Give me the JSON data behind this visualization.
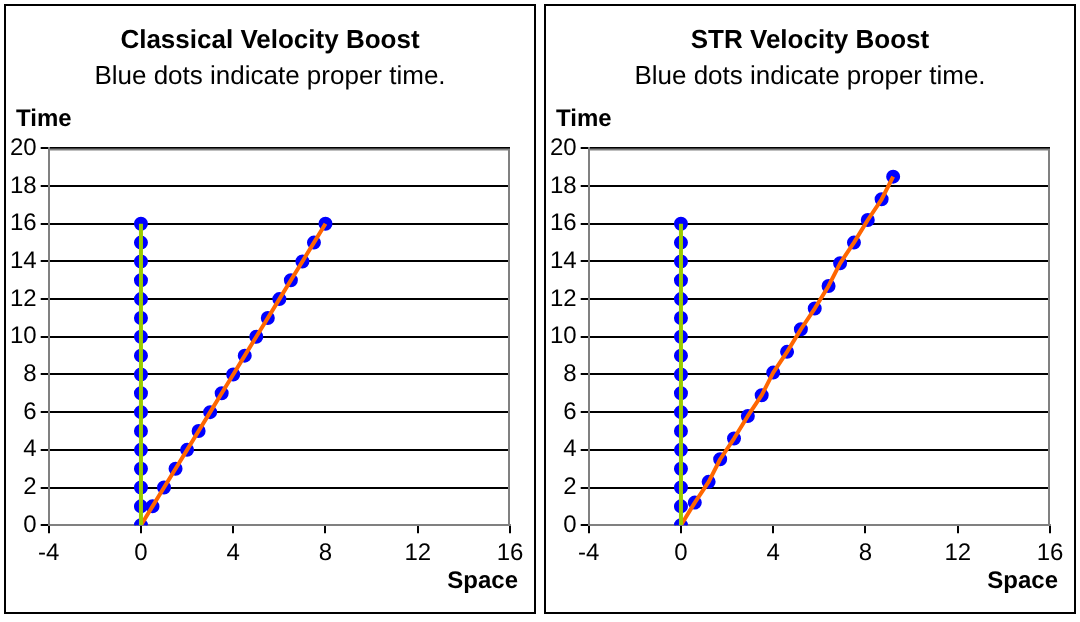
{
  "chart_data": [
    {
      "type": "scatter",
      "title": "Classical Velocity Boost",
      "subtitle": "Blue dots indicate proper time.",
      "xlabel": "Space",
      "ylabel": "Time",
      "xlim": [
        -4,
        16
      ],
      "xticks": [
        -4,
        0,
        4,
        8,
        12,
        16
      ],
      "ylim": [
        0,
        20
      ],
      "yticks": [
        0,
        2,
        4,
        6,
        8,
        10,
        12,
        14,
        16,
        18,
        20
      ],
      "grid": "y",
      "legend": false,
      "series": [
        {
          "type": "line",
          "marker": "none",
          "color": "#99cc00",
          "x": [
            0,
            0,
            0,
            0,
            0,
            0,
            0,
            0,
            0,
            0,
            0,
            0,
            0,
            0,
            0,
            0,
            0
          ],
          "values": [
            0,
            1,
            2,
            3,
            4,
            5,
            6,
            7,
            8,
            9,
            10,
            11,
            12,
            13,
            14,
            15,
            16
          ]
        },
        {
          "type": "line",
          "marker": "none",
          "color": "#ff6600",
          "x": [
            0,
            0.5,
            1,
            1.5,
            2,
            2.5,
            3,
            3.5,
            4,
            4.5,
            5,
            5.5,
            6,
            6.5,
            7,
            7.5,
            8
          ],
          "values": [
            0,
            1,
            2,
            3,
            4,
            5,
            6,
            7,
            8,
            9,
            10,
            11,
            12,
            13,
            14,
            15,
            16
          ]
        },
        {
          "marker": "circle",
          "color": "#0000ff",
          "x": [
            0,
            0,
            0,
            0,
            0,
            0,
            0,
            0,
            0,
            0,
            0,
            0,
            0,
            0,
            0,
            0,
            0
          ],
          "values": [
            0,
            1,
            2,
            3,
            4,
            5,
            6,
            7,
            8,
            9,
            10,
            11,
            12,
            13,
            14,
            15,
            16
          ]
        },
        {
          "marker": "circle",
          "color": "#0000ff",
          "x": [
            0.5,
            1,
            1.5,
            2,
            2.5,
            3,
            3.5,
            4,
            4.5,
            5,
            5.5,
            6,
            6.5,
            7,
            7.5,
            8
          ],
          "values": [
            1,
            2,
            3,
            4,
            5,
            6,
            7,
            8,
            9,
            10,
            11,
            12,
            13,
            14,
            15,
            16
          ]
        }
      ]
    },
    {
      "type": "scatter",
      "title": "STR Velocity Boost",
      "subtitle": "Blue dots indicate proper time.",
      "xlabel": "Space",
      "ylabel": "Time",
      "xlim": [
        -4,
        16
      ],
      "xticks": [
        -4,
        0,
        4,
        8,
        12,
        16
      ],
      "ylim": [
        0,
        20
      ],
      "yticks": [
        0,
        2,
        4,
        6,
        8,
        10,
        12,
        14,
        16,
        18,
        20
      ],
      "grid": "y",
      "legend": false,
      "series": [
        {
          "type": "line",
          "marker": "none",
          "color": "#99cc00",
          "x": [
            0,
            0,
            0,
            0,
            0,
            0,
            0,
            0,
            0,
            0,
            0,
            0,
            0,
            0,
            0,
            0,
            0
          ],
          "values": [
            0,
            1,
            2,
            3,
            4,
            5,
            6,
            7,
            8,
            9,
            10,
            11,
            12,
            13,
            14,
            15,
            16
          ]
        },
        {
          "type": "line",
          "marker": "none",
          "color": "#ff6600",
          "x": [
            0,
            0.6,
            1.2,
            1.7,
            2.3,
            2.9,
            3.5,
            4.0,
            4.6,
            5.2,
            5.8,
            6.4,
            6.9,
            7.5,
            8.1,
            8.7,
            9.2
          ],
          "values": [
            0,
            1.2,
            2.3,
            3.5,
            4.6,
            5.8,
            6.9,
            8.1,
            9.2,
            10.4,
            11.5,
            12.7,
            13.9,
            15.0,
            16.2,
            17.3,
            18.5
          ]
        },
        {
          "marker": "circle",
          "color": "#0000ff",
          "x": [
            0,
            0,
            0,
            0,
            0,
            0,
            0,
            0,
            0,
            0,
            0,
            0,
            0,
            0,
            0,
            0,
            0
          ],
          "values": [
            0,
            1,
            2,
            3,
            4,
            5,
            6,
            7,
            8,
            9,
            10,
            11,
            12,
            13,
            14,
            15,
            16
          ]
        },
        {
          "marker": "circle",
          "color": "#0000ff",
          "x": [
            0.6,
            1.2,
            1.7,
            2.3,
            2.9,
            3.5,
            4.0,
            4.6,
            5.2,
            5.8,
            6.4,
            6.9,
            7.5,
            8.1,
            8.7,
            9.2
          ],
          "values": [
            1.2,
            2.3,
            3.5,
            4.6,
            5.8,
            6.9,
            8.1,
            9.2,
            10.4,
            11.5,
            12.7,
            13.9,
            15.0,
            16.2,
            17.3,
            18.5
          ]
        }
      ]
    }
  ]
}
